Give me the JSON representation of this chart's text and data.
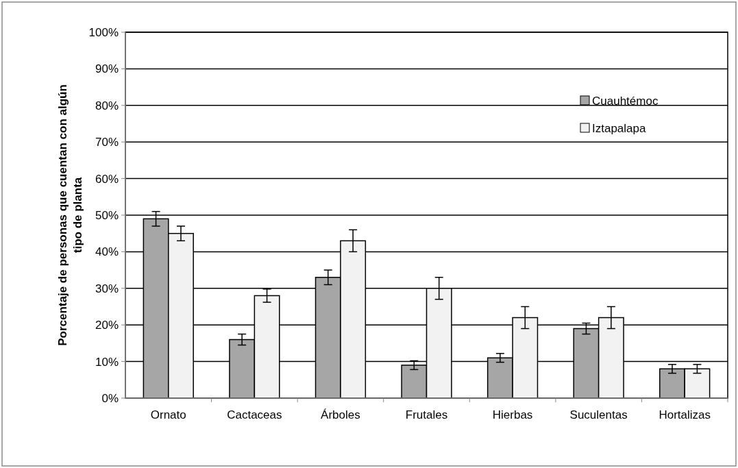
{
  "chart_data": {
    "type": "bar",
    "ylabel": "Porcentaje de personas que cuentan con algún tipo de planta",
    "categories": [
      "Ornato",
      "Cactaceas",
      "Árboles",
      "Frutales",
      "Hierbas",
      "Suculentas",
      "Hortalizas"
    ],
    "series": [
      {
        "name": "Cuauhtémoc",
        "color": "#a6a6a6",
        "values": [
          49,
          16,
          33,
          9,
          11,
          19,
          8
        ],
        "errors": [
          2,
          1.5,
          2,
          1.2,
          1.2,
          1.5,
          1.2
        ]
      },
      {
        "name": "Iztapalapa",
        "color": "#f2f2f2",
        "values": [
          45,
          28,
          43,
          30,
          22,
          22,
          8
        ],
        "errors": [
          2,
          1.8,
          3,
          3,
          3,
          3,
          1.2
        ]
      }
    ],
    "ylim": [
      0,
      100
    ],
    "yticks": [
      {
        "value": 0,
        "label": "0%"
      },
      {
        "value": 10,
        "label": "10%"
      },
      {
        "value": 20,
        "label": "20%"
      },
      {
        "value": 30,
        "label": "30%"
      },
      {
        "value": 40,
        "label": "40%"
      },
      {
        "value": 50,
        "label": "50%"
      },
      {
        "value": 60,
        "label": "60%"
      },
      {
        "value": 70,
        "label": "70%"
      },
      {
        "value": 80,
        "label": "80%"
      },
      {
        "value": 90,
        "label": "90%"
      },
      {
        "value": 100,
        "label": "100%"
      }
    ],
    "grid": "y",
    "legend": "top right"
  }
}
